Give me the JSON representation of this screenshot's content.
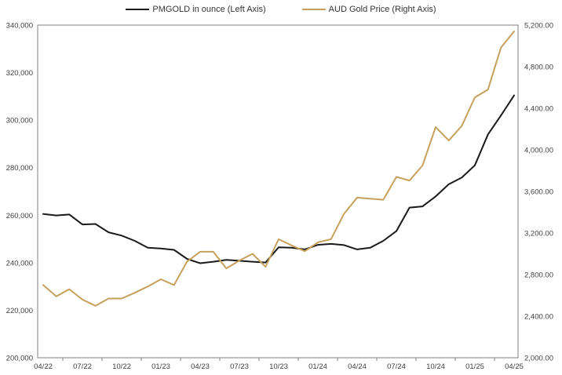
{
  "chart_data": {
    "type": "line",
    "title": "",
    "legend_position": "top",
    "grid": false,
    "categories": [
      "04/22",
      "05/22",
      "06/22",
      "07/22",
      "08/22",
      "09/22",
      "10/22",
      "11/22",
      "12/22",
      "01/23",
      "02/23",
      "03/23",
      "04/23",
      "05/23",
      "06/23",
      "07/23",
      "08/23",
      "09/23",
      "10/23",
      "11/23",
      "12/23",
      "01/24",
      "02/24",
      "03/24",
      "04/24",
      "05/24",
      "06/24",
      "07/24",
      "08/24",
      "09/24",
      "10/24",
      "11/24",
      "12/24",
      "01/25",
      "02/25",
      "03/25",
      "04/25"
    ],
    "x_tick_labels": [
      "04/22",
      "07/22",
      "10/22",
      "01/23",
      "04/23",
      "07/23",
      "10/23",
      "01/24",
      "04/24",
      "07/24",
      "10/24",
      "01/25",
      "04/25"
    ],
    "series": [
      {
        "name": "PMGOLD in ounce (Left Axis)",
        "axis": "left",
        "color": "#1a1a1a",
        "values": [
          260500,
          259900,
          260300,
          256100,
          256300,
          252800,
          251400,
          249200,
          246300,
          246000,
          245400,
          241600,
          239800,
          240400,
          241200,
          240800,
          240400,
          240100,
          246500,
          246300,
          245600,
          247500,
          247900,
          247400,
          245600,
          246300,
          249200,
          253300,
          263200,
          263700,
          267900,
          273000,
          275800,
          281000,
          294000,
          302000,
          310400
        ]
      },
      {
        "name": "AUD Gold Price (Right Axis)",
        "axis": "right",
        "color": "#c5a15c",
        "values": [
          2700,
          2590,
          2660,
          2560,
          2500,
          2570,
          2570,
          2625,
          2685,
          2755,
          2700,
          2925,
          3020,
          3020,
          2860,
          2935,
          3000,
          2875,
          3140,
          3080,
          3025,
          3110,
          3140,
          3385,
          3540,
          3530,
          3520,
          3740,
          3705,
          3850,
          4220,
          4090,
          4230,
          4505,
          4580,
          4985,
          5140
        ]
      }
    ],
    "left_axis": {
      "min": 200000,
      "max": 340000,
      "step": 20000,
      "tick_labels": [
        "340,000",
        "320,000",
        "300,000",
        "280,000",
        "260,000",
        "240,000",
        "220,000",
        "200,000"
      ]
    },
    "right_axis": {
      "min": 2000,
      "max": 5200,
      "step": 400,
      "tick_labels": [
        "5,200.00",
        "4,800.00",
        "4,400.00",
        "4,000.00",
        "3,600.00",
        "3,200.00",
        "2,800.00",
        "2,400.00",
        "2,000.00"
      ]
    }
  },
  "style": {
    "axis_line_color": "#7f7f7f",
    "tick_text_color": "#404040",
    "legend_text_color": "#333333",
    "background": "#ffffff"
  }
}
